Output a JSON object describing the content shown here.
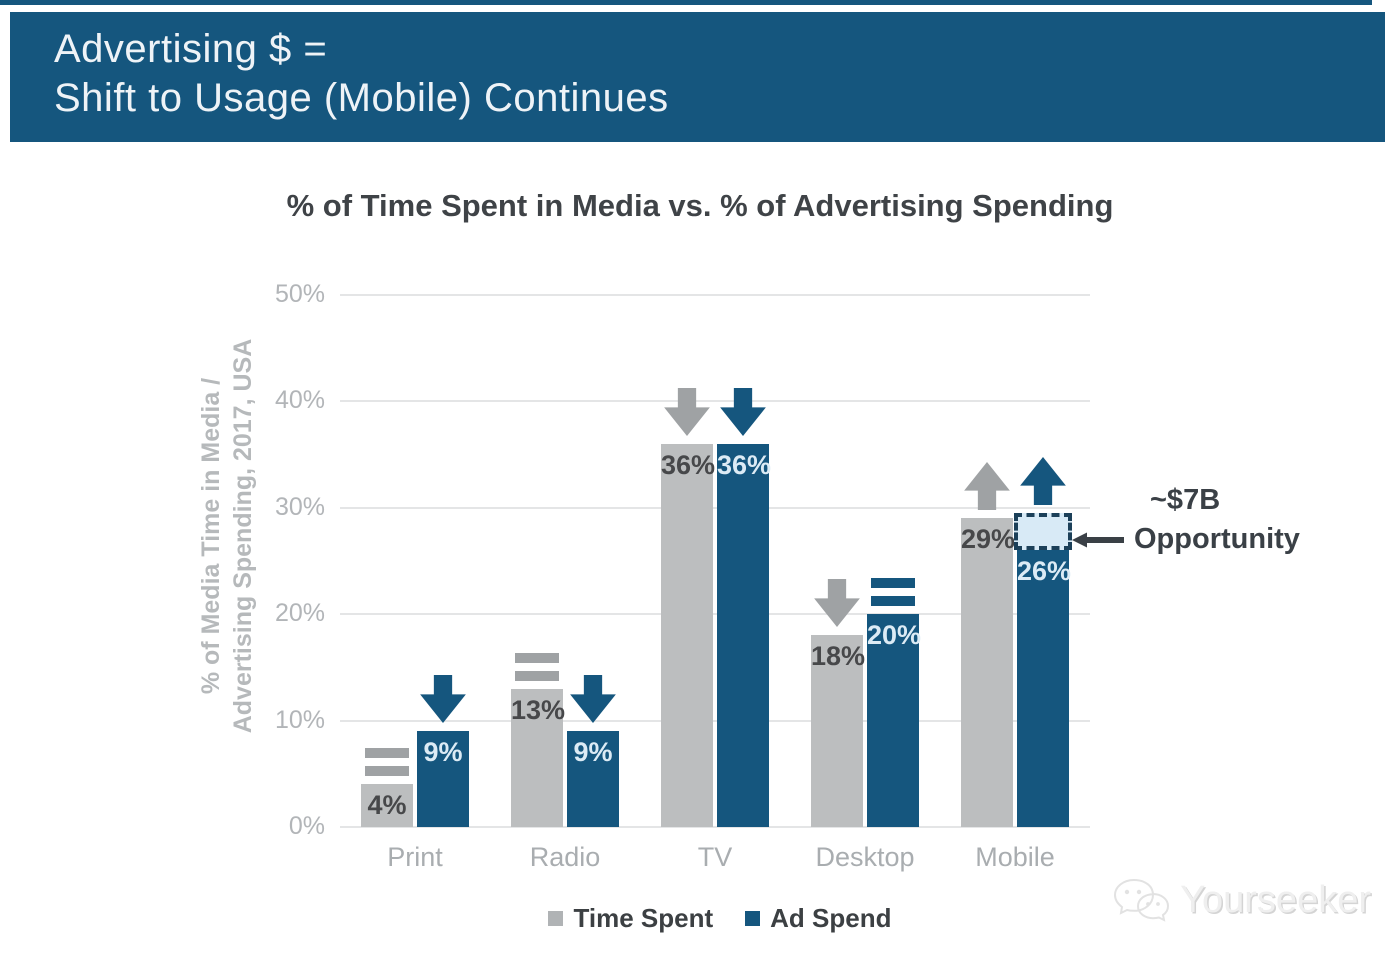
{
  "banner": {
    "line1": "Advertising $ =",
    "line2": "Shift to Usage (Mobile) Continues",
    "bg_color": "#15567e",
    "text_color": "#eef3f7"
  },
  "chart_data": {
    "type": "bar",
    "title": "% of Time Spent in Media vs. % of Advertising Spending",
    "ylabel_line1": "% of Media Time in Media /",
    "ylabel_line2": "Advertising Spending, 2017, USA",
    "categories": [
      "Print",
      "Radio",
      "TV",
      "Desktop",
      "Mobile"
    ],
    "series": [
      {
        "name": "Time Spent",
        "color": "#bcbebf",
        "indicator_color": "#9fa2a4",
        "label_color": "#47484a",
        "values": [
          4,
          13,
          36,
          18,
          29
        ],
        "labels": [
          "4%",
          "13%",
          "36%",
          "18%",
          "29%"
        ],
        "indicators": [
          "flat",
          "flat",
          "down",
          "down",
          "up"
        ]
      },
      {
        "name": "Ad Spend",
        "color": "#15567e",
        "indicator_color": "#15567e",
        "label_color": "#dcebf5",
        "values": [
          9,
          9,
          36,
          20,
          26
        ],
        "labels": [
          "9%",
          "9%",
          "36%",
          "20%",
          "26%"
        ],
        "indicators": [
          "down",
          "down",
          "down",
          "flat",
          "up"
        ]
      }
    ],
    "y_ticks": [
      {
        "label": "50%",
        "value": 50
      },
      {
        "label": "40%",
        "value": 40
      },
      {
        "label": "30%",
        "value": 30
      },
      {
        "label": "20%",
        "value": 20
      },
      {
        "label": "10%",
        "value": 10
      },
      {
        "label": "0%",
        "value": 0
      }
    ],
    "ylim": [
      0,
      50
    ],
    "grid": true,
    "legend_position": "bottom",
    "annotation": {
      "line1": "~$7B",
      "line2": "Opportunity",
      "target_series": "Ad Spend",
      "target_category": "Mobile",
      "gap_from": 26,
      "gap_to": 29.5,
      "box_fill": "#d8eaf6",
      "box_border": "#1c4059"
    }
  },
  "legend": {
    "items": [
      {
        "label": "Time Spent",
        "color": "#b0b3b5"
      },
      {
        "label": "Ad Spend",
        "color": "#15567e"
      }
    ]
  },
  "watermark": {
    "text": "Yourseeker"
  }
}
